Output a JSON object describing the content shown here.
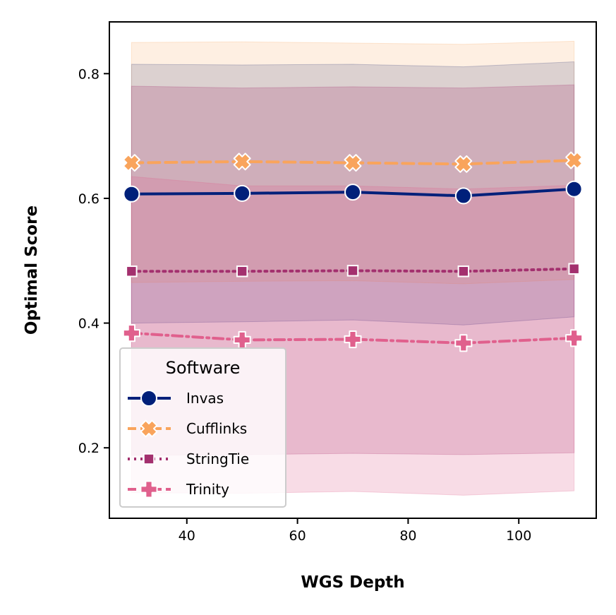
{
  "chart_data": {
    "type": "line",
    "xlabel": "WGS Depth",
    "ylabel": "Optimal Score",
    "x": [
      30,
      50,
      70,
      90,
      110
    ],
    "xlim": [
      26,
      114
    ],
    "ylim": [
      0.087,
      0.883
    ],
    "xticks": [
      40,
      60,
      80,
      100
    ],
    "yticks": [
      0.2,
      0.4,
      0.6,
      0.8
    ],
    "xtick_labels": [
      "40",
      "60",
      "80",
      "100"
    ],
    "ytick_labels": [
      "0.2",
      "0.4",
      "0.6",
      "0.8"
    ],
    "grid": false,
    "legend": {
      "title": "Software",
      "placement": "lower-left"
    },
    "series": [
      {
        "name": "Invas",
        "color": "#00207a",
        "marker": "circle",
        "linestyle": "solid",
        "values": [
          0.607,
          0.608,
          0.61,
          0.604,
          0.615
        ],
        "ci_low": [
          0.4,
          0.402,
          0.405,
          0.397,
          0.41
        ],
        "ci_high": [
          0.815,
          0.814,
          0.815,
          0.811,
          0.819
        ]
      },
      {
        "name": "Cufflinks",
        "color": "#f9a45c",
        "marker": "x",
        "linestyle": "dashed",
        "values": [
          0.657,
          0.659,
          0.657,
          0.655,
          0.661
        ],
        "ci_low": [
          0.465,
          0.467,
          0.468,
          0.463,
          0.47
        ],
        "ci_high": [
          0.85,
          0.851,
          0.849,
          0.847,
          0.852
        ]
      },
      {
        "name": "StringTie",
        "color": "#a3306e",
        "marker": "square",
        "linestyle": "dotted",
        "values": [
          0.483,
          0.483,
          0.484,
          0.483,
          0.487
        ],
        "ci_low": [
          0.188,
          0.189,
          0.191,
          0.189,
          0.192
        ],
        "ci_high": [
          0.78,
          0.777,
          0.779,
          0.777,
          0.782
        ]
      },
      {
        "name": "Trinity",
        "color": "#e0608d",
        "marker": "plus",
        "linestyle": "dashdot",
        "values": [
          0.384,
          0.373,
          0.374,
          0.368,
          0.376
        ],
        "ci_low": [
          0.128,
          0.127,
          0.13,
          0.124,
          0.131
        ],
        "ci_high": [
          0.635,
          0.62,
          0.62,
          0.615,
          0.621
        ]
      }
    ]
  }
}
